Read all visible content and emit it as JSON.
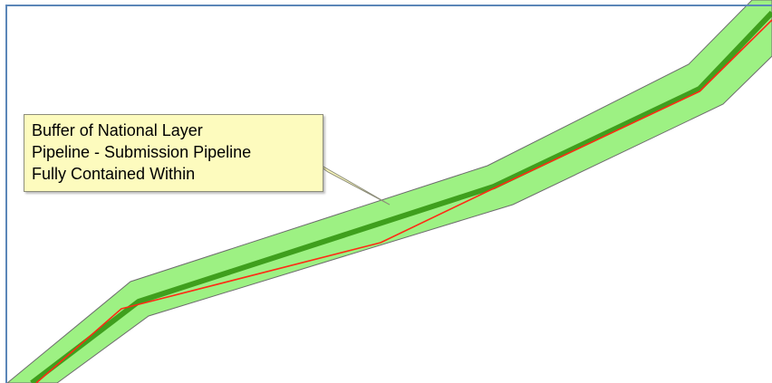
{
  "map": {
    "colors": {
      "buffer_fill": "#9df183",
      "buffer_outline": "#6d6d6d",
      "national_pipeline": "#3f9f1d",
      "submission_pipeline": "#ff2a14",
      "frame_border": "#5b86b8",
      "callout_fill": "#fdfbbe"
    },
    "layers": [
      {
        "id": "buffer",
        "name": "Buffer of National Layer Pipeline"
      },
      {
        "id": "national-pipeline",
        "name": "National Layer Pipeline"
      },
      {
        "id": "submission-pipeline",
        "name": "Submission Pipeline"
      }
    ],
    "callout": {
      "lines": [
        "Buffer of National Layer",
        "Pipeline - Submission Pipeline",
        "Fully Contained Within"
      ]
    }
  }
}
